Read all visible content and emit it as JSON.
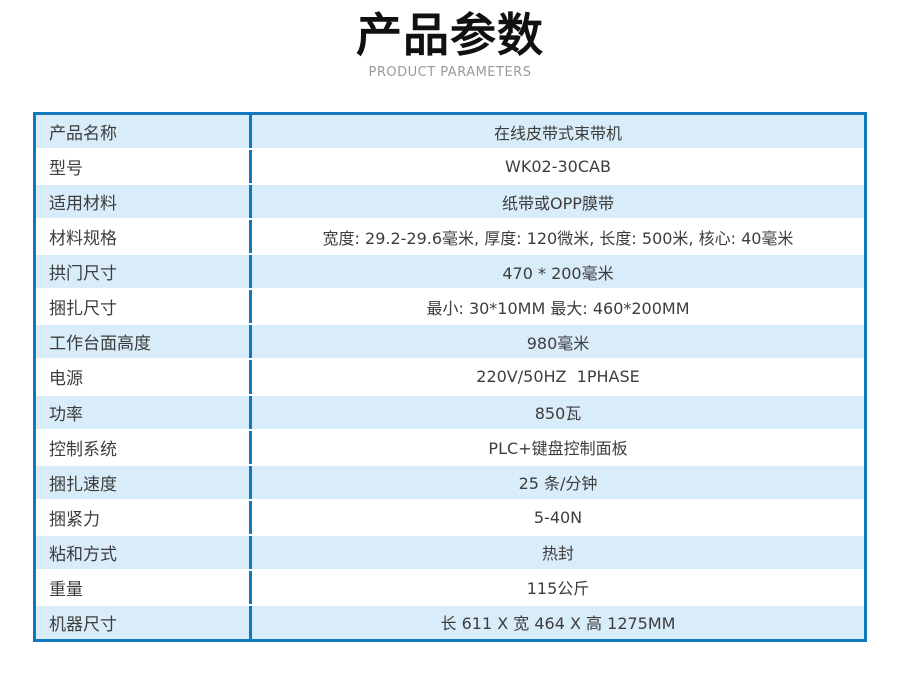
{
  "header": {
    "title": "产品参数",
    "subtitle": "PRODUCT PARAMETERS"
  },
  "colors": {
    "accent_blue": "#1278BE",
    "row_light_blue": "#D9ECF9",
    "title_color": "#111111",
    "subtitle_gray": "#9B9B9B",
    "text_dark": "#3D3D3D"
  },
  "table": {
    "rows": [
      {
        "label": "产品名称",
        "value": "在线皮带式束带机"
      },
      {
        "label": "型号",
        "value": "WK02-30CAB"
      },
      {
        "label": "适用材料",
        "value": "纸带或OPP膜带"
      },
      {
        "label": "材料规格",
        "value": "宽度: 29.2-29.6毫米, 厚度: 120微米, 长度: 500米, 核心: 40毫米"
      },
      {
        "label": "拱门尺寸",
        "value": "470 * 200毫米"
      },
      {
        "label": "捆扎尺寸",
        "value": "最小: 30*10MM 最大: 460*200MM"
      },
      {
        "label": "工作台面高度",
        "value": "980毫米"
      },
      {
        "label": "电源",
        "value": "220V/50HZ  1PHASE"
      },
      {
        "label": "功率",
        "value": "850瓦"
      },
      {
        "label": "控制系统",
        "value": "PLC+键盘控制面板"
      },
      {
        "label": "捆扎速度",
        "value": "25 条/分钟"
      },
      {
        "label": "捆紧力",
        "value": "5-40N"
      },
      {
        "label": "粘和方式",
        "value": "热封"
      },
      {
        "label": "重量",
        "value": "115公斤"
      },
      {
        "label": "机器尺寸",
        "value": "长 611 X 宽 464 X 高 1275MM"
      }
    ]
  }
}
